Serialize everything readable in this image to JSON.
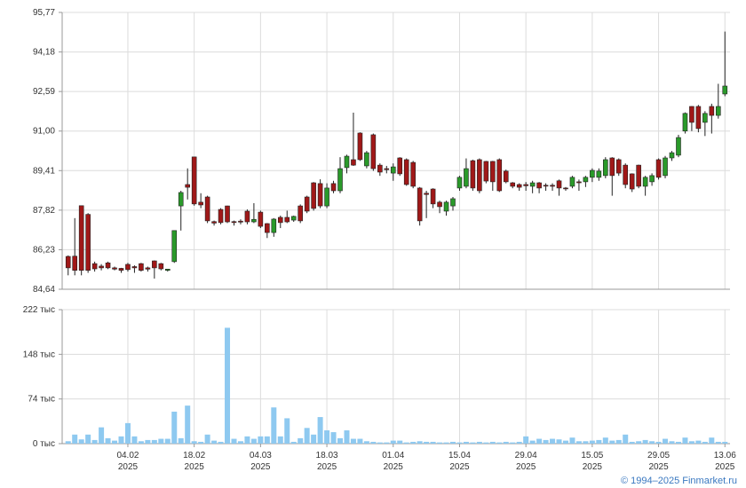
{
  "chart_data": [
    {
      "type": "candlestick",
      "open": [
        85.96,
        85.97,
        88.0,
        87.65,
        85.67,
        85.57,
        85.7,
        85.5,
        85.48,
        85.64,
        85.55,
        85.67,
        85.5,
        85.78,
        85.67,
        85.4,
        85.75,
        87.99,
        88.85,
        89.96,
        88.14,
        88.35,
        87.36,
        87.85,
        87.99,
        87.36,
        87.38,
        87.78,
        87.35,
        87.74,
        87.28,
        86.92,
        87.53,
        87.53,
        87.42,
        87.99,
        88.35,
        88.92,
        88.89,
        87.99,
        88.89,
        88.6,
        89.53,
        89.85,
        90.92,
        89.6,
        90.85,
        89.63,
        89.49,
        89.31,
        89.92,
        89.85,
        89.74,
        88.71,
        88.5,
        88.67,
        88.14,
        87.78,
        87.99,
        88.71,
        88.78,
        89.81,
        89.85,
        89.78,
        89.78,
        89.85,
        89.39,
        88.92,
        88.85,
        88.85,
        88.78,
        88.92,
        88.82,
        88.82,
        89.0,
        88.71,
        88.78,
        88.96,
        88.96,
        89.14,
        89.14,
        89.21,
        89.92,
        89.85,
        89.63,
        89.28,
        89.63,
        88.78,
        88.96,
        89.85,
        89.21,
        89.92,
        90.03,
        91.0,
        91.99,
        91.99,
        91.35,
        91.99,
        91.63,
        92.49
      ],
      "high": [
        86.0,
        87.5,
        88.0,
        87.7,
        85.75,
        85.65,
        85.75,
        85.55,
        85.5,
        85.7,
        85.6,
        85.7,
        85.55,
        85.8,
        85.7,
        85.45,
        87.0,
        88.6,
        89.5,
        89.96,
        88.5,
        88.4,
        87.4,
        87.9,
        88.0,
        87.4,
        87.45,
        87.85,
        88.1,
        87.8,
        87.3,
        87.5,
        87.6,
        87.8,
        87.6,
        88.05,
        88.4,
        88.95,
        89.06,
        88.9,
        89.0,
        89.95,
        90.05,
        91.74,
        90.95,
        90.2,
        90.9,
        89.7,
        89.6,
        89.7,
        89.95,
        89.9,
        89.8,
        88.75,
        88.6,
        88.7,
        88.2,
        88.2,
        88.35,
        89.2,
        89.9,
        89.85,
        89.9,
        89.8,
        89.8,
        89.9,
        89.45,
        88.95,
        88.9,
        88.95,
        89.0,
        88.95,
        88.9,
        88.9,
        89.05,
        88.75,
        89.2,
        89.05,
        89.2,
        89.5,
        89.5,
        89.95,
        89.95,
        89.9,
        89.7,
        89.3,
        89.65,
        89.2,
        89.3,
        89.9,
        90.0,
        90.2,
        90.85,
        91.75,
        92.0,
        92.05,
        91.8,
        92.1,
        92.9,
        95.0
      ],
      "low": [
        85.2,
        85.2,
        85.2,
        85.3,
        85.35,
        85.4,
        85.45,
        85.4,
        85.3,
        85.35,
        85.3,
        85.35,
        85.35,
        85.07,
        85.4,
        85.35,
        85.7,
        87.0,
        88.25,
        88.0,
        87.9,
        87.3,
        87.2,
        87.25,
        87.3,
        87.2,
        87.25,
        87.25,
        87.3,
        87.1,
        86.7,
        86.75,
        87.1,
        87.3,
        87.35,
        87.3,
        87.7,
        87.8,
        87.9,
        87.9,
        88.5,
        88.5,
        89.3,
        89.6,
        89.8,
        89.5,
        89.4,
        89.2,
        89.3,
        89.0,
        89.2,
        88.8,
        88.7,
        87.2,
        87.5,
        87.9,
        87.7,
        87.6,
        87.8,
        88.6,
        88.7,
        88.6,
        88.5,
        88.9,
        88.6,
        88.55,
        88.9,
        88.7,
        88.6,
        88.6,
        88.5,
        88.5,
        88.6,
        88.6,
        88.4,
        88.6,
        88.7,
        88.6,
        88.75,
        88.95,
        89.0,
        89.1,
        88.4,
        89.2,
        88.7,
        88.55,
        88.7,
        88.4,
        88.8,
        89.05,
        89.1,
        89.8,
        89.95,
        90.9,
        91.0,
        90.95,
        90.8,
        90.9,
        91.5,
        92.4
      ],
      "close": [
        85.5,
        85.4,
        85.4,
        85.4,
        85.46,
        85.5,
        85.5,
        85.45,
        85.4,
        85.43,
        85.5,
        85.4,
        85.45,
        85.5,
        85.46,
        85.45,
        87.0,
        88.53,
        88.74,
        88.07,
        88.03,
        87.39,
        87.3,
        87.32,
        87.35,
        87.32,
        87.34,
        87.35,
        87.45,
        87.17,
        86.92,
        87.46,
        87.32,
        87.35,
        87.57,
        87.39,
        87.78,
        87.89,
        87.99,
        88.71,
        88.6,
        89.49,
        89.99,
        89.63,
        89.85,
        90.13,
        89.49,
        89.35,
        89.45,
        89.56,
        89.28,
        88.85,
        88.78,
        87.39,
        88.45,
        88.07,
        87.96,
        88.14,
        88.28,
        89.14,
        89.49,
        88.71,
        88.6,
        88.99,
        88.96,
        88.6,
        88.96,
        88.78,
        88.74,
        88.8,
        88.92,
        88.71,
        88.8,
        88.78,
        88.71,
        88.68,
        89.14,
        88.92,
        89.14,
        89.42,
        89.39,
        89.85,
        89.21,
        89.31,
        88.85,
        88.67,
        88.78,
        89.14,
        89.21,
        89.14,
        89.92,
        90.13,
        90.74,
        91.71,
        91.35,
        91.1,
        91.71,
        91.63,
        91.99,
        92.81
      ],
      "up_color": "#2a9a2a",
      "down_color": "#a01818",
      "ylim": [
        84.64,
        95.77
      ],
      "yticks": [
        {
          "value": 84.64,
          "label": "84,64"
        },
        {
          "value": 86.23,
          "label": "86,23"
        },
        {
          "value": 87.82,
          "label": "87,82"
        },
        {
          "value": 89.41,
          "label": "89,41"
        },
        {
          "value": 91.0,
          "label": "91,00"
        },
        {
          "value": 92.59,
          "label": "92,59"
        },
        {
          "value": 94.18,
          "label": "94,18"
        },
        {
          "value": 95.77,
          "label": "95,77"
        }
      ],
      "grid": true
    },
    {
      "type": "bar",
      "categories": [
        null,
        null,
        null,
        null,
        null,
        null,
        null,
        null,
        null,
        "04.02\n2025",
        null,
        null,
        null,
        null,
        null,
        null,
        null,
        null,
        null,
        "18.02\n2025",
        null,
        null,
        null,
        null,
        null,
        null,
        null,
        null,
        null,
        "04.03\n2025",
        null,
        null,
        null,
        null,
        null,
        null,
        null,
        null,
        null,
        "18.03\n2025",
        null,
        null,
        null,
        null,
        null,
        null,
        null,
        null,
        null,
        "01.04\n2025",
        null,
        null,
        null,
        null,
        null,
        null,
        null,
        null,
        null,
        "15.04\n2025",
        null,
        null,
        null,
        null,
        null,
        null,
        null,
        null,
        null,
        "29.04\n2025",
        null,
        null,
        null,
        null,
        null,
        null,
        null,
        null,
        null,
        "15.05\n2025",
        null,
        null,
        null,
        null,
        null,
        null,
        null,
        null,
        null,
        "29.05\n2025",
        null,
        null,
        null,
        null,
        null,
        null,
        null,
        null,
        null,
        "13.06\n2025"
      ],
      "values": [
        4,
        15,
        7,
        15,
        6,
        27,
        9,
        5,
        12,
        34,
        12,
        4,
        6,
        6,
        8,
        8,
        53,
        9,
        63,
        4,
        3,
        15,
        5,
        3,
        192,
        8,
        4,
        12,
        8,
        12,
        12,
        60,
        12,
        42,
        3,
        9,
        26,
        15,
        44,
        22,
        19,
        9,
        22,
        8,
        8,
        4,
        3,
        2,
        2,
        5,
        5,
        2,
        3,
        4,
        3,
        3,
        2,
        2,
        3,
        2,
        3,
        2,
        3,
        2,
        3,
        2,
        3,
        2,
        3,
        12,
        5,
        8,
        6,
        8,
        7,
        5,
        10,
        4,
        4,
        5,
        6,
        10,
        5,
        6,
        15,
        3,
        4,
        6,
        4,
        3,
        8,
        4,
        3,
        10,
        4,
        5,
        3,
        10,
        3,
        3
      ],
      "color": "#8ec9f0",
      "ylim": [
        0,
        222
      ],
      "yticks": [
        {
          "value": 0,
          "label": "0 тыс"
        },
        {
          "value": 74,
          "label": "74 тыс"
        },
        {
          "value": 148,
          "label": "148 тыс"
        },
        {
          "value": 222,
          "label": "222 тыс"
        }
      ],
      "grid": true
    }
  ],
  "footer": "© 1994–2025 Finmarket.ru"
}
